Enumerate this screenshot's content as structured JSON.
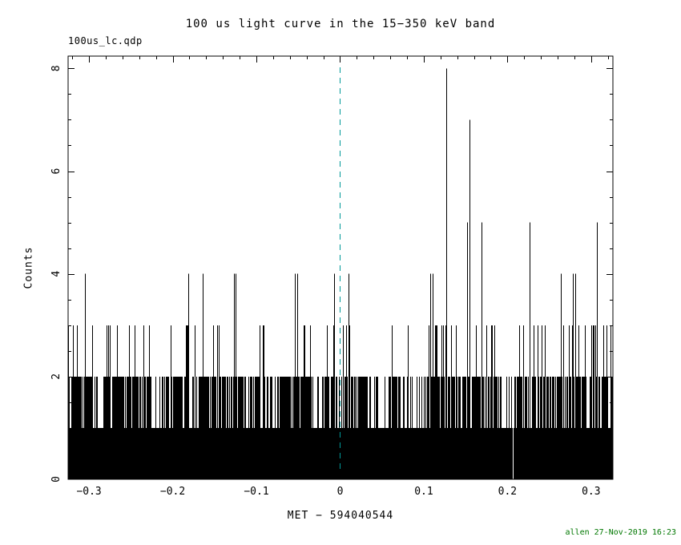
{
  "chart_data": {
    "type": "histogram",
    "title": "100 us light curve in the 15−350 keV band",
    "file_label": "100us_lc.qdp",
    "xlabel": "MET − 594040544",
    "ylabel": "Counts",
    "credit": "allen 27-Nov-2019 16:23",
    "xlim": [
      -0.325,
      0.326
    ],
    "ylim": [
      0,
      8.24
    ],
    "x_ticks": [
      -0.3,
      -0.2,
      -0.1,
      0,
      0.1,
      0.2,
      0.3
    ],
    "x_tick_labels": [
      "−0.3",
      "−0.2",
      "−0.1",
      "0",
      "0.1",
      "0.2",
      "0.3"
    ],
    "y_ticks": [
      0,
      2,
      4,
      6,
      8
    ],
    "x_minor_step": 0.02,
    "y_minor_step": 0.5,
    "x_major_step": 0.1,
    "y_major_step": 2,
    "bin_width_s": 0.0001,
    "grid": false,
    "marker_line": {
      "x": 0,
      "style": "dashed",
      "color": "#009898"
    },
    "colors": {
      "data": "#000000",
      "frame": "#000000",
      "text": "#000000",
      "credit": "#007700"
    },
    "baseline": {
      "solid_to_counts": 1,
      "gaps_x": [
        0.207
      ]
    },
    "texture": {
      "seed": 20191127,
      "p_count2": 0.66,
      "p_count3": 0.11,
      "regions": [
        {
          "from": 0.045,
          "to": 0.1,
          "p2": 0.5,
          "p3": 0.02
        },
        {
          "from": 0.11,
          "to": 0.185,
          "p2": 0.72,
          "p3": 0.2
        }
      ]
    },
    "peaks": [
      {
        "x": -0.305,
        "counts": 4
      },
      {
        "x": -0.181,
        "counts": 4
      },
      {
        "x": -0.164,
        "counts": 4
      },
      {
        "x": -0.127,
        "counts": 4
      },
      {
        "x": -0.125,
        "counts": 4
      },
      {
        "x": -0.054,
        "counts": 4
      },
      {
        "x": -0.051,
        "counts": 4
      },
      {
        "x": -0.007,
        "counts": 4
      },
      {
        "x": 0.01,
        "counts": 4
      },
      {
        "x": 0.108,
        "counts": 4
      },
      {
        "x": 0.111,
        "counts": 4
      },
      {
        "x": 0.127,
        "counts": 8
      },
      {
        "x": 0.152,
        "counts": 5
      },
      {
        "x": 0.155,
        "counts": 7
      },
      {
        "x": 0.169,
        "counts": 5
      },
      {
        "x": 0.226,
        "counts": 5
      },
      {
        "x": 0.264,
        "counts": 4
      },
      {
        "x": 0.278,
        "counts": 4
      },
      {
        "x": 0.281,
        "counts": 4
      },
      {
        "x": 0.307,
        "counts": 5
      }
    ]
  }
}
